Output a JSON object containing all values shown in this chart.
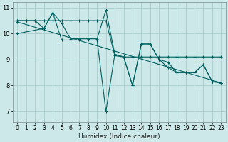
{
  "title": "",
  "xlabel": "Humidex (Indice chaleur)",
  "bg_color": "#cce8e8",
  "grid_color": "#aacccc",
  "line_color": "#006060",
  "xlim": [
    -0.5,
    23.5
  ],
  "ylim": [
    6.6,
    11.2
  ],
  "xticks": [
    0,
    1,
    2,
    3,
    4,
    5,
    6,
    7,
    8,
    9,
    10,
    11,
    12,
    13,
    14,
    15,
    16,
    17,
    18,
    19,
    20,
    21,
    22,
    23
  ],
  "ytick_labels": [
    "",
    "7",
    "",
    "8",
    "",
    "9",
    "",
    "10",
    "",
    "11"
  ],
  "yticks": [
    6.5,
    7,
    7.5,
    8,
    8.5,
    9,
    9.5,
    10,
    10.5,
    11
  ],
  "yticks_labeled": [
    7,
    8,
    9,
    10,
    11
  ],
  "series": [
    {
      "x": [
        0,
        1,
        2,
        3,
        4,
        5,
        6,
        7,
        8,
        9,
        10,
        11,
        12,
        13,
        14,
        15,
        16,
        17,
        18,
        19,
        20,
        21,
        22,
        23
      ],
      "y": [
        10.5,
        10.5,
        10.5,
        10.2,
        10.8,
        10.4,
        9.8,
        9.8,
        9.8,
        9.8,
        10.9,
        9.2,
        9.1,
        8.0,
        9.6,
        9.6,
        9.0,
        8.9,
        8.5,
        8.5,
        8.5,
        8.8,
        8.15,
        8.1
      ]
    },
    {
      "x": [
        0,
        1,
        2,
        3,
        4,
        5,
        6,
        7,
        8,
        9,
        10,
        11,
        12,
        13,
        14,
        15,
        16,
        17,
        18,
        19,
        20,
        21,
        22,
        23
      ],
      "y": [
        10.5,
        10.5,
        10.5,
        10.5,
        10.5,
        10.5,
        10.5,
        10.5,
        10.5,
        10.5,
        10.5,
        9.15,
        9.1,
        9.1,
        9.1,
        9.1,
        9.1,
        9.1,
        9.1,
        9.1,
        9.1,
        9.1,
        9.1,
        9.1
      ]
    },
    {
      "x": [
        0,
        3,
        4,
        5,
        6,
        7,
        8,
        9,
        10,
        11,
        12,
        13,
        14,
        15,
        16,
        17,
        18,
        19,
        20,
        21,
        22,
        23
      ],
      "y": [
        10.0,
        10.2,
        10.8,
        9.75,
        9.75,
        9.75,
        9.75,
        9.75,
        7.0,
        9.2,
        9.1,
        8.0,
        9.6,
        9.6,
        9.0,
        8.7,
        8.5,
        8.5,
        8.5,
        8.8,
        8.15,
        8.1
      ]
    },
    {
      "x": [
        0,
        23
      ],
      "y": [
        10.45,
        8.1
      ]
    }
  ],
  "xlabel_fontsize": 6.5,
  "tick_fontsize": 5.5
}
